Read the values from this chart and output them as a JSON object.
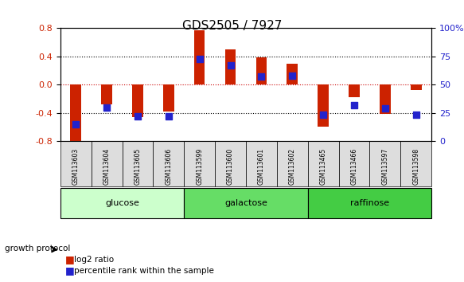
{
  "title": "GDS2505 / 7927",
  "samples": [
    "GSM113603",
    "GSM113604",
    "GSM113605",
    "GSM113606",
    "GSM113599",
    "GSM113600",
    "GSM113601",
    "GSM113602",
    "GSM113465",
    "GSM113466",
    "GSM113597",
    "GSM113598"
  ],
  "log2_ratio": [
    -0.82,
    -0.28,
    -0.46,
    -0.38,
    0.77,
    0.5,
    0.39,
    0.3,
    -0.6,
    -0.18,
    -0.42,
    -0.08
  ],
  "percentile_rank": [
    15,
    30,
    22,
    22,
    73,
    67,
    57,
    58,
    23,
    32,
    29,
    23
  ],
  "groups": [
    {
      "name": "glucose",
      "start": 0,
      "end": 4,
      "color": "#ccffcc"
    },
    {
      "name": "galactose",
      "start": 4,
      "end": 8,
      "color": "#66dd66"
    },
    {
      "name": "raffinose",
      "start": 8,
      "end": 12,
      "color": "#44cc44"
    }
  ],
  "ylim": [
    -0.8,
    0.8
  ],
  "yticks": [
    -0.8,
    -0.4,
    0.0,
    0.4,
    0.8
  ],
  "right_yticks": [
    0,
    25,
    50,
    75,
    100
  ],
  "right_ylabels": [
    "0",
    "25",
    "50",
    "75",
    "100%"
  ],
  "bar_color": "#cc2200",
  "dot_color": "#2222cc",
  "grid_color": "#000000",
  "zero_line_color": "#cc0000",
  "background": "#ffffff"
}
